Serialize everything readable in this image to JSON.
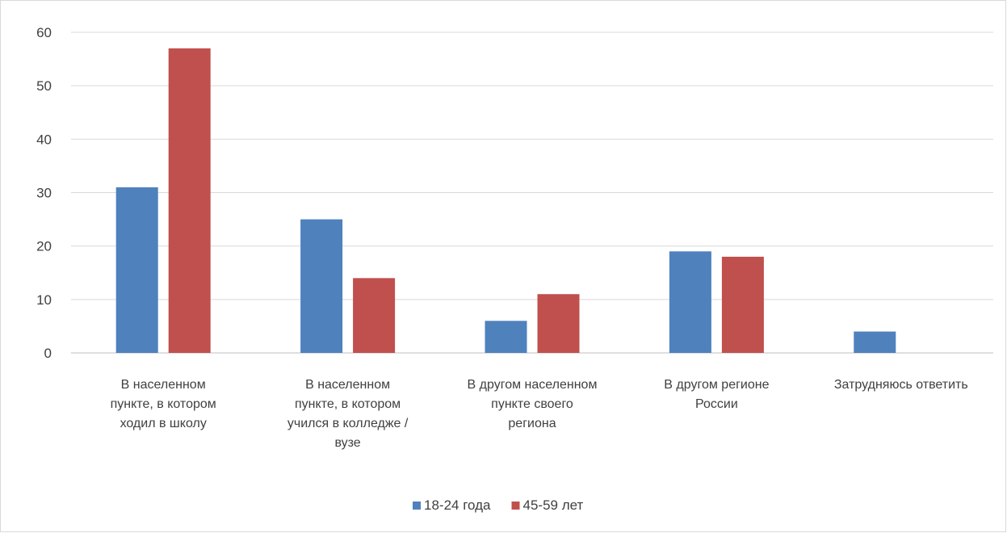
{
  "chart_data": {
    "type": "bar",
    "title": "",
    "xlabel": "",
    "ylabel": "",
    "ylim": [
      0,
      60
    ],
    "yticks": [
      0,
      10,
      20,
      30,
      40,
      50,
      60
    ],
    "grid": true,
    "legend_position": "bottom",
    "categories": [
      "В населенном пункте, в котором ходил в школу",
      "В населенном пункте, в котором учился в колледже / вузе",
      "В другом населенном пункте своего региона",
      "В другом регионе России",
      "Затрудняюсь ответить"
    ],
    "category_lines": [
      [
        "В населенном",
        "пункте, в котором",
        "ходил в школу"
      ],
      [
        "В населенном",
        "пункте, в котором",
        "учился в колледже /",
        "вузе"
      ],
      [
        "В другом населенном",
        "пункте своего",
        "региона"
      ],
      [
        "В другом регионе",
        "России"
      ],
      [
        "Затрудняюсь ответить"
      ]
    ],
    "series": [
      {
        "name": "18-24 года",
        "color": "#4f81bd",
        "values": [
          31,
          25,
          6,
          19,
          4
        ]
      },
      {
        "name": "45-59 лет",
        "color": "#c0504d",
        "values": [
          57,
          14,
          11,
          18,
          0
        ]
      }
    ]
  }
}
